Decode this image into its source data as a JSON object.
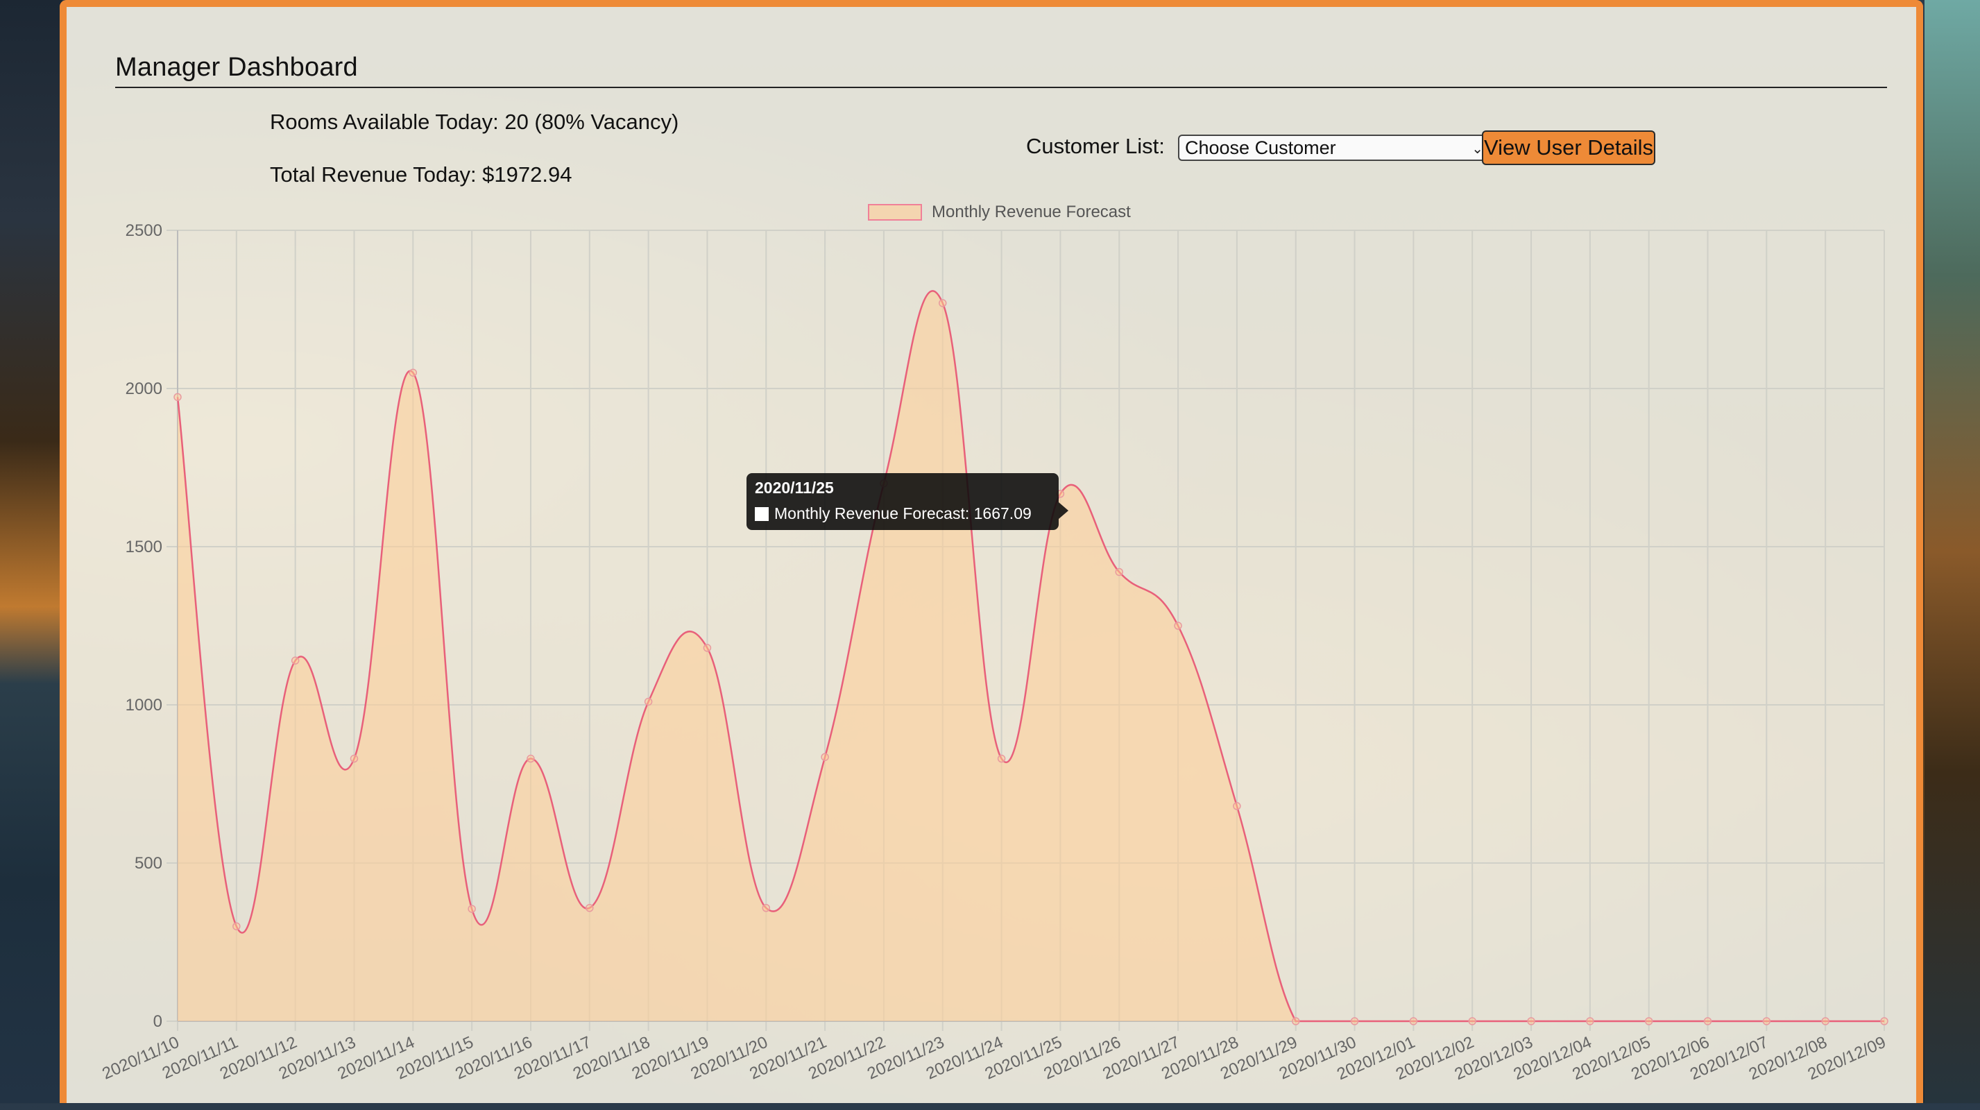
{
  "dashboard": {
    "title": "Manager Dashboard",
    "rooms_available": "Rooms Available Today: 20 (80% Vacancy)",
    "total_revenue": "Total Revenue Today: $1972.94",
    "customer_label": "Customer List:",
    "customer_select_value": "Choose Customer",
    "view_button_label": "View User Details",
    "tooltip": {
      "title": "2020/11/25",
      "label": "Monthly Revenue Forecast: 1667.09"
    }
  },
  "colors": {
    "accent": "#ee8a37",
    "line": "#e8607a",
    "fill": "#ffcd96"
  },
  "chart_data": {
    "type": "area",
    "legend": "top-center",
    "grid": true,
    "ylim": [
      0,
      2500
    ],
    "yticks": [
      0,
      500,
      1000,
      1500,
      2000,
      2500
    ],
    "categories": [
      "2020/11/10",
      "2020/11/11",
      "2020/11/12",
      "2020/11/13",
      "2020/11/14",
      "2020/11/15",
      "2020/11/16",
      "2020/11/17",
      "2020/11/18",
      "2020/11/19",
      "2020/11/20",
      "2020/11/21",
      "2020/11/22",
      "2020/11/23",
      "2020/11/24",
      "2020/11/25",
      "2020/11/26",
      "2020/11/27",
      "2020/11/28",
      "2020/11/29",
      "2020/11/30",
      "2020/12/01",
      "2020/12/02",
      "2020/12/03",
      "2020/12/04",
      "2020/12/05",
      "2020/12/06",
      "2020/12/07",
      "2020/12/08",
      "2020/12/09"
    ],
    "series": [
      {
        "name": "Monthly Revenue Forecast",
        "values": [
          1972.94,
          300,
          1140,
          830,
          2050,
          355,
          830,
          358,
          1010,
          1180,
          358,
          835,
          1700,
          2270,
          830,
          1667.09,
          1420,
          1250,
          680,
          0,
          0,
          0,
          0,
          0,
          0,
          0,
          0,
          0,
          0,
          0
        ]
      }
    ]
  }
}
